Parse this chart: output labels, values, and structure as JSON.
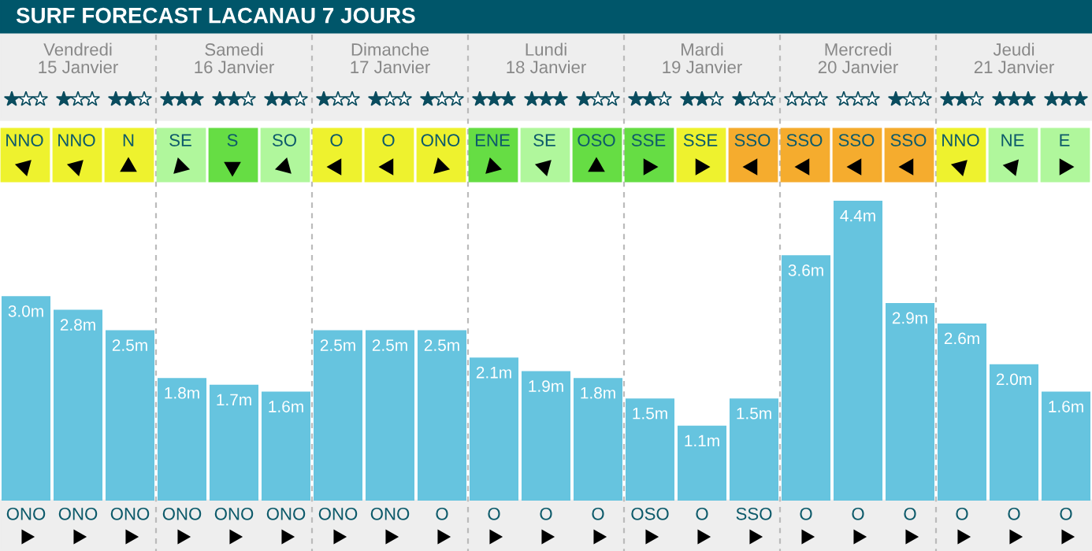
{
  "chart_data": {
    "type": "bar",
    "title": "SURF FORECAST LACANAU 7 JOURS",
    "categories": [
      "ONO",
      "ONO",
      "ONO",
      "ONO",
      "ONO",
      "ONO",
      "ONO",
      "ONO",
      "O",
      "O",
      "O",
      "O",
      "OSO",
      "O",
      "SSO",
      "O",
      "O",
      "O",
      "O",
      "O",
      "O"
    ],
    "values": [
      3.0,
      2.8,
      2.5,
      1.8,
      1.7,
      1.6,
      2.5,
      2.5,
      2.5,
      2.1,
      1.9,
      1.8,
      1.5,
      1.1,
      1.5,
      3.6,
      4.4,
      2.9,
      2.6,
      2.0,
      1.6
    ],
    "value_labels": [
      "3.0m",
      "2.8m",
      "2.5m",
      "1.8m",
      "1.7m",
      "1.6m",
      "2.5m",
      "2.5m",
      "2.5m",
      "2.1m",
      "1.9m",
      "1.8m",
      "1.5m",
      "1.1m",
      "1.5m",
      "3.6m",
      "4.4m",
      "2.9m",
      "2.6m",
      "2.0m",
      "1.6m"
    ],
    "color": "#66c4df",
    "annotations": [
      "Vendredi\n15 Janvier",
      "Samedi\n16 Janvier",
      "Dimanche\n17 Janvier",
      "Lundi\n18 Janvier",
      "Mardi\n19 Janvier",
      "Mercredi\n20 Janvier",
      "Jeudi\n21 Janvier",
      "NNO",
      "NNO",
      "N",
      "SE",
      "S",
      "SO",
      "O",
      "O",
      "ONO",
      "ENE",
      "SE",
      "OSO",
      "SSE",
      "SSE",
      "SSO",
      "SSO",
      "SSO",
      "SSO",
      "NNO",
      "NE",
      "E"
    ],
    "grid": false,
    "legend": false
  }
}
